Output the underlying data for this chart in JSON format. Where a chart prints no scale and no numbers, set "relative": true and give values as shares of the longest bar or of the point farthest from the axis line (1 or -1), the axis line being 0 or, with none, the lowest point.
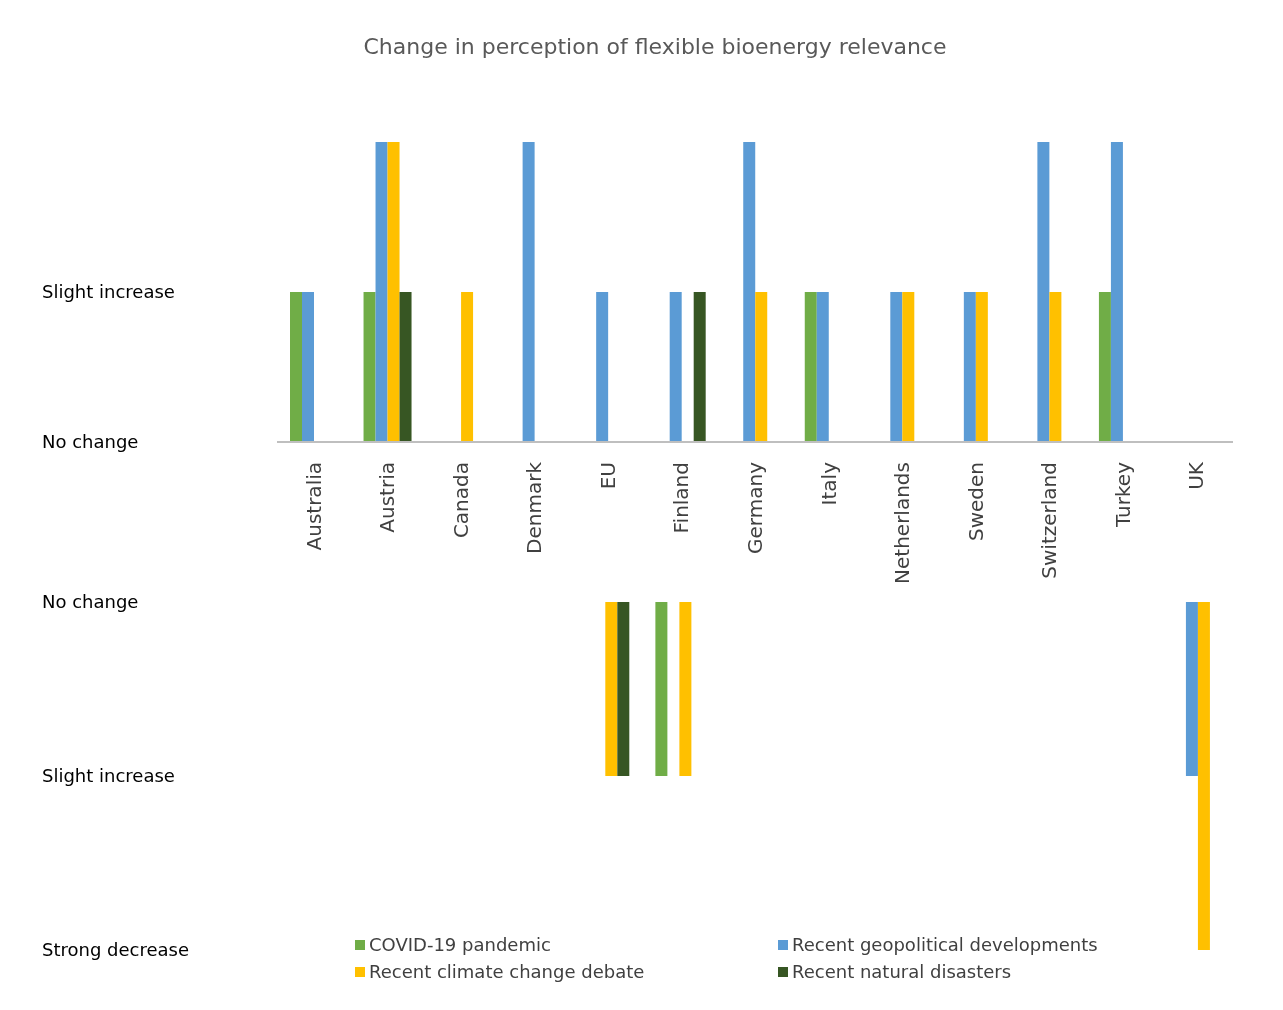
{
  "chart_data": [
    {
      "type": "bar",
      "title": "Change in perception of flexible bioenergy relevance",
      "relative": true,
      "categories": [
        "Australia",
        "Austria",
        "Canada",
        "Denmark",
        "EU",
        "Finland",
        "Germany",
        "Italy",
        "Netherlands",
        "Sweden",
        "Switzerland",
        "Turkey",
        "UK"
      ],
      "series": [
        {
          "color": "#70ad47",
          "values": [
            0.5,
            0.5,
            null,
            null,
            null,
            null,
            null,
            0.5,
            null,
            null,
            null,
            0.5,
            null
          ]
        },
        {
          "color": "#5b9bd5",
          "values": [
            0.5,
            1,
            null,
            1,
            0.5,
            0.5,
            1,
            0.5,
            0.5,
            0.5,
            1,
            1,
            null
          ]
        },
        {
          "color": "#ffc000",
          "values": [
            null,
            1,
            0.5,
            null,
            null,
            null,
            0.5,
            null,
            0.5,
            0.5,
            0.5,
            null,
            null
          ]
        },
        {
          "color": "#375623",
          "values": [
            null,
            0.5,
            null,
            null,
            null,
            0.5,
            null,
            null,
            null,
            null,
            null,
            null,
            null
          ]
        }
      ],
      "annotations": [
        "Slight increase",
        "No change"
      ],
      "grid": false,
      "legend": false
    },
    {
      "type": "bar",
      "relative": true,
      "categories": [
        null,
        null,
        null,
        null,
        null,
        null,
        null,
        null,
        null,
        null,
        null,
        null,
        null
      ],
      "series": [
        {
          "name": "COVID-19 pandemic",
          "color": "#70ad47",
          "values": [
            null,
            null,
            null,
            null,
            null,
            -0.5,
            null,
            null,
            null,
            null,
            null,
            null,
            null
          ]
        },
        {
          "name": "Recent geopolitical developments",
          "color": "#5b9bd5",
          "values": [
            null,
            null,
            null,
            null,
            null,
            null,
            null,
            null,
            null,
            null,
            null,
            null,
            -0.5
          ]
        },
        {
          "name": "Recent climate change debate",
          "color": "#ffc000",
          "values": [
            null,
            null,
            null,
            null,
            -0.5,
            -0.5,
            null,
            null,
            null,
            null,
            null,
            null,
            -1
          ]
        },
        {
          "name": "Recent natural disasters",
          "color": "#375623",
          "values": [
            null,
            null,
            null,
            null,
            -0.5,
            null,
            null,
            null,
            null,
            null,
            null,
            null,
            null
          ]
        }
      ],
      "annotations": [
        "No change",
        "Slight increase",
        "Strong decrease"
      ],
      "grid": false,
      "legend": "bottom"
    }
  ]
}
